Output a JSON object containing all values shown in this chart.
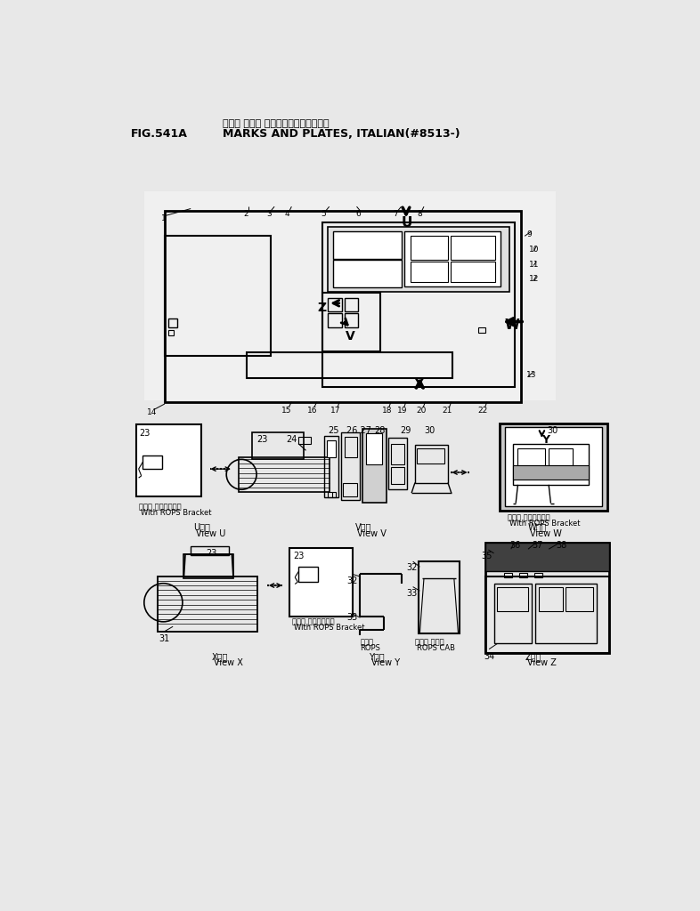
{
  "title_jp": "マーク および プレート（イタリアゴ）",
  "title_en": "MARKS AND PLATES, ITALIAN(#8513-)",
  "fig_label": "FIG.541A",
  "bg_color": "#e8e8e8",
  "white": "#ffffff"
}
